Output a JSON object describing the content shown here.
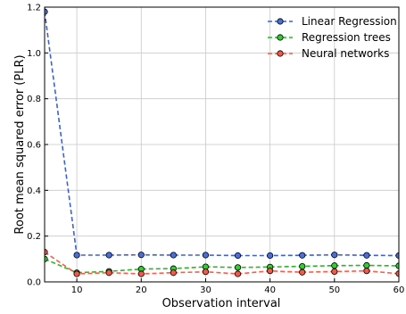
{
  "chart_data": {
    "type": "line",
    "title": "",
    "xlabel": "Observation interval",
    "ylabel": "Root mean squared error (PLR)",
    "xlim": [
      5,
      60
    ],
    "ylim": [
      0.0,
      1.2
    ],
    "x_ticks": [
      10,
      20,
      30,
      40,
      50,
      60
    ],
    "y_ticks": [
      0.0,
      0.2,
      0.4,
      0.6,
      0.8,
      1.0,
      1.2
    ],
    "x_tick_labels": [
      "10",
      "20",
      "30",
      "40",
      "50",
      "60"
    ],
    "y_tick_labels": [
      "0.0",
      "0.2",
      "0.4",
      "0.6",
      "0.8",
      "1.0",
      "1.2"
    ],
    "grid": true,
    "legend_position": "top-right",
    "x": [
      5,
      10,
      15,
      20,
      25,
      30,
      35,
      40,
      45,
      50,
      55,
      60
    ],
    "series": [
      {
        "name": "Linear Regression",
        "color": "#3a62d4",
        "marker_fill": "#4a6fd8",
        "values": [
          1.18,
          0.117,
          0.117,
          0.118,
          0.117,
          0.117,
          0.115,
          0.115,
          0.116,
          0.118,
          0.116,
          0.115
        ]
      },
      {
        "name": "Regression trees",
        "color": "#22bb22",
        "marker_fill": "#33cc33",
        "values": [
          0.1,
          0.04,
          0.046,
          0.056,
          0.058,
          0.066,
          0.063,
          0.065,
          0.068,
          0.071,
          0.072,
          0.07
        ]
      },
      {
        "name": "Neural networks",
        "color": "#ff5a4a",
        "marker_fill": "#f05a48",
        "values": [
          0.13,
          0.035,
          0.04,
          0.035,
          0.04,
          0.044,
          0.035,
          0.048,
          0.042,
          0.045,
          0.048,
          0.036
        ]
      }
    ]
  }
}
